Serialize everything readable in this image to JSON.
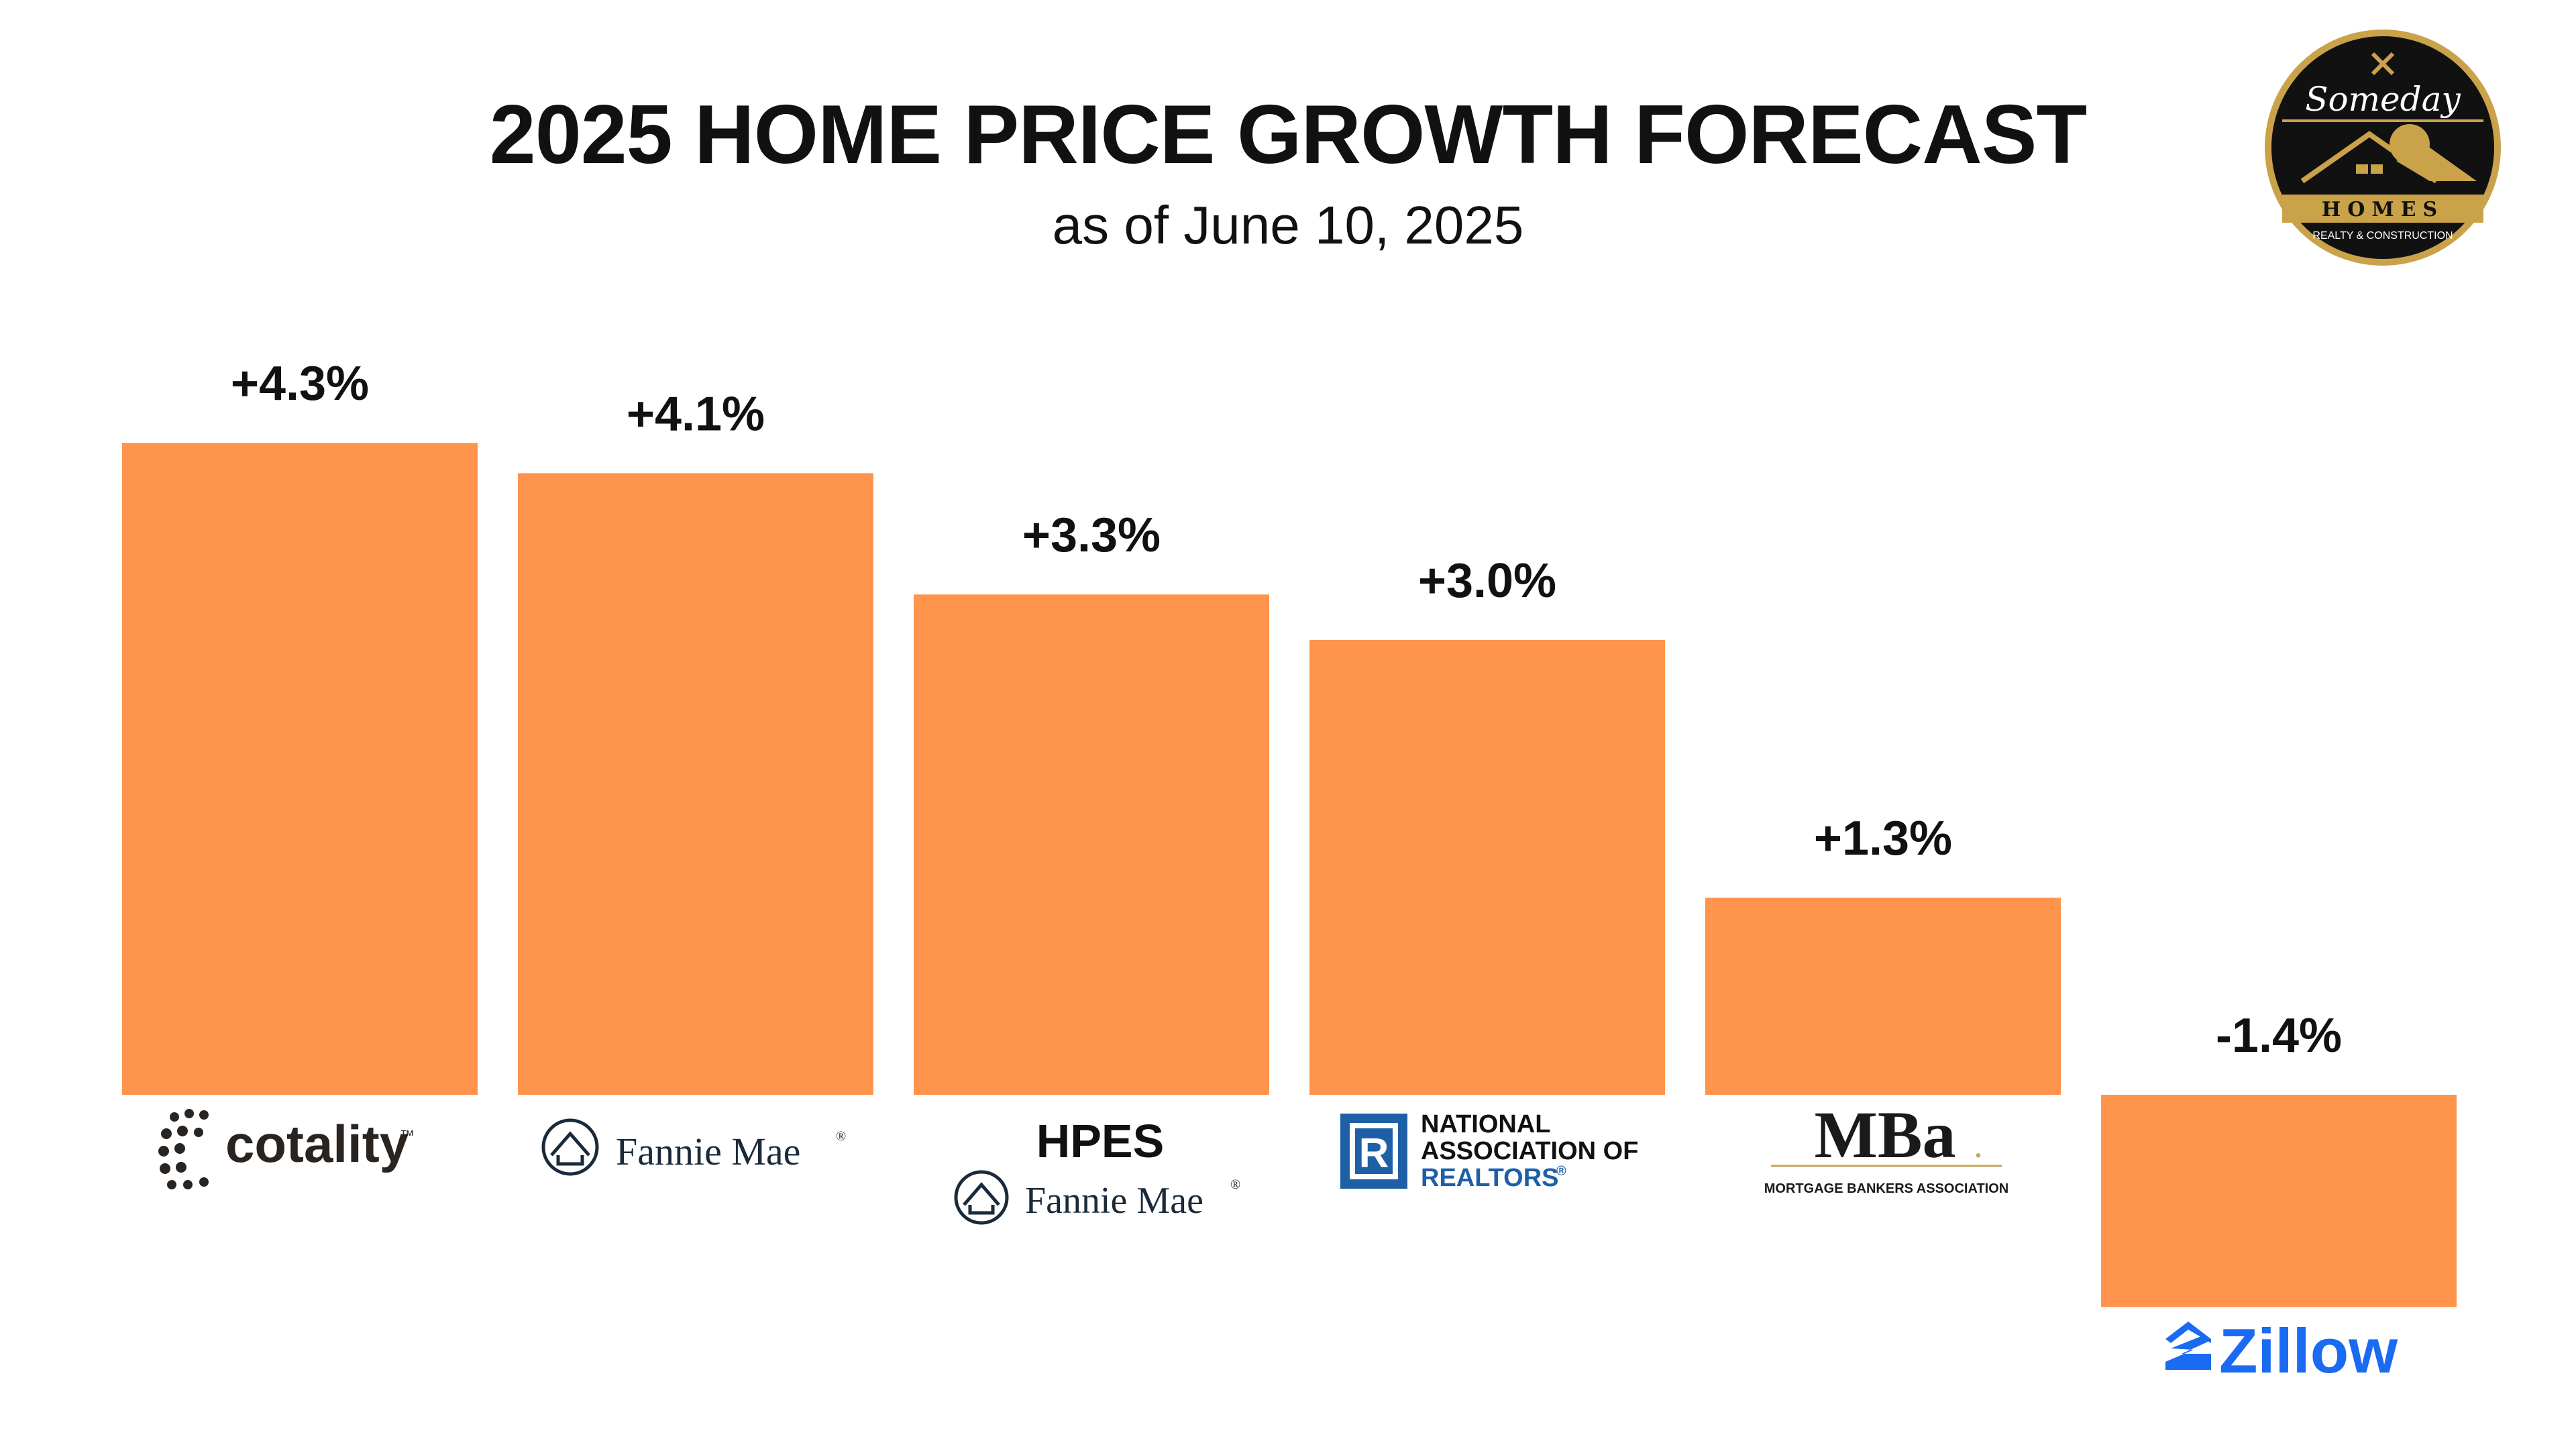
{
  "title": "2025 HOME PRICE GROWTH FORECAST",
  "subtitle": "as of June 10, 2025",
  "colors": {
    "bar": "#FF944D",
    "text": "#111111",
    "nar_blue": "#1F5FA6",
    "zillow_blue": "#1A6BF2",
    "badge_gold": "#C9A24A"
  },
  "badge": {
    "line1": "Someday",
    "line2": "HOMES",
    "line3": "REALTY & CONSTRUCTION"
  },
  "chart_data": {
    "type": "bar",
    "title": "2025 HOME PRICE GROWTH FORECAST",
    "subtitle": "as of June 10, 2025",
    "categories": [
      "Cotality",
      "Fannie Mae",
      "HPES Fannie Mae",
      "National Association of Realtors",
      "MBA",
      "Zillow"
    ],
    "values": [
      4.3,
      4.1,
      3.3,
      3.0,
      1.3,
      -1.4
    ],
    "value_labels": [
      "+4.3%",
      "+4.1%",
      "+3.3%",
      "+3.0%",
      "+1.3%",
      "-1.4%"
    ],
    "ylabel": "",
    "xlabel": "",
    "grid": false,
    "ylim": [
      -1.4,
      4.3
    ]
  },
  "logos": {
    "cotality": {
      "name": "cotality",
      "tm": "™"
    },
    "fannie": {
      "name": "Fannie Mae",
      "reg": "®"
    },
    "hpes": {
      "title": "HPES",
      "name": "Fannie Mae",
      "reg": "®"
    },
    "nar": {
      "line1": "NATIONAL",
      "line2": "ASSOCIATION OF",
      "line3": "REALTORS",
      "reg": "®",
      "mark": "R"
    },
    "mba": {
      "name": "MBa",
      "reg": ".",
      "sub": "MORTGAGE BANKERS ASSOCIATION"
    },
    "zillow": {
      "name": "Zillow",
      "icon": "zillow-house-icon"
    }
  }
}
